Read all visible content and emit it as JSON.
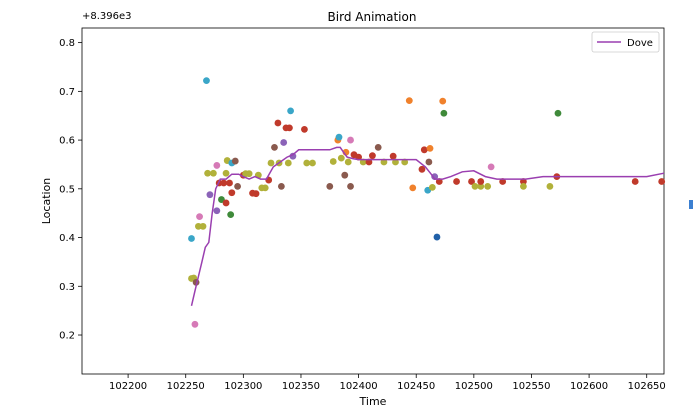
{
  "window": {
    "title": "Bird Animation"
  },
  "colors": {
    "dove": "#9a3fb0",
    "blue": "#3aa6c8",
    "orange": "#f0812c",
    "green": "#3f8a3a",
    "red": "#c03a2b",
    "purple": "#8b63b8",
    "brown": "#8a5a4e",
    "pink": "#d67ab7",
    "gray": "#7f7f7f",
    "olive": "#b1b13a",
    "cyan": "#18bfd0",
    "navy": "#2060a8"
  },
  "chart_data": {
    "type": "line",
    "title": "Bird Animation",
    "xlabel": "Time",
    "ylabel": "Location",
    "offset_text": "+8.396e3",
    "xlim": [
      102160,
      102665
    ],
    "ylim": [
      0.12,
      0.83
    ],
    "xticks": [
      102200,
      102250,
      102300,
      102350,
      102400,
      102450,
      102500,
      102550,
      102600,
      102650
    ],
    "yticks": [
      0.2,
      0.3,
      0.4,
      0.5,
      0.6,
      0.7,
      0.8
    ],
    "xtick_labels": [
      "102200",
      "102250",
      "102300",
      "102350",
      "102400",
      "102450",
      "102500",
      "102550",
      "102600",
      "102650"
    ],
    "ytick_labels": [
      "0.2",
      "0.3",
      "0.4",
      "0.5",
      "0.6",
      "0.7",
      "0.8"
    ],
    "legend": {
      "position": "top-right",
      "entries": [
        {
          "name": "Dove",
          "color": "#9a3fb0"
        }
      ]
    },
    "series": [
      {
        "name": "Dove",
        "color": "#9a3fb0",
        "x": [
          102255,
          102258,
          102261,
          102264,
          102267,
          102270,
          102273,
          102276,
          102280,
          102285,
          102290,
          102296,
          102300,
          102305,
          102310,
          102315,
          102320,
          102326,
          102332,
          102338,
          102343,
          102348,
          102355,
          102365,
          102375,
          102381,
          102384,
          102387,
          102390,
          102395,
          102400,
          102410,
          102420,
          102430,
          102440,
          102450,
          102458,
          102463,
          102466,
          102469,
          102473,
          102480,
          102490,
          102500,
          102510,
          102520,
          102530,
          102545,
          102560,
          102575,
          102590,
          102610,
          102630,
          102650,
          102665
        ],
        "y": [
          0.26,
          0.29,
          0.32,
          0.35,
          0.38,
          0.39,
          0.45,
          0.5,
          0.52,
          0.52,
          0.53,
          0.53,
          0.525,
          0.52,
          0.525,
          0.52,
          0.52,
          0.545,
          0.555,
          0.565,
          0.57,
          0.58,
          0.58,
          0.58,
          0.58,
          0.585,
          0.585,
          0.575,
          0.565,
          0.562,
          0.56,
          0.56,
          0.56,
          0.56,
          0.56,
          0.56,
          0.545,
          0.53,
          0.52,
          0.52,
          0.52,
          0.525,
          0.535,
          0.537,
          0.525,
          0.52,
          0.52,
          0.52,
          0.525,
          0.525,
          0.525,
          0.525,
          0.525,
          0.525,
          0.532
        ]
      }
    ],
    "points": [
      {
        "x": 102255,
        "y": 0.398,
        "c": "blue"
      },
      {
        "x": 102258,
        "y": 0.222,
        "c": "pink"
      },
      {
        "x": 102255,
        "y": 0.316,
        "c": "olive"
      },
      {
        "x": 102257,
        "y": 0.317,
        "c": "olive"
      },
      {
        "x": 102259,
        "y": 0.308,
        "c": "brown"
      },
      {
        "x": 102262,
        "y": 0.443,
        "c": "pink"
      },
      {
        "x": 102261,
        "y": 0.423,
        "c": "olive"
      },
      {
        "x": 102265,
        "y": 0.423,
        "c": "olive"
      },
      {
        "x": 102268,
        "y": 0.722,
        "c": "blue"
      },
      {
        "x": 102269,
        "y": 0.532,
        "c": "olive"
      },
      {
        "x": 102274,
        "y": 0.532,
        "c": "olive"
      },
      {
        "x": 102277,
        "y": 0.548,
        "c": "pink"
      },
      {
        "x": 102271,
        "y": 0.488,
        "c": "purple"
      },
      {
        "x": 102277,
        "y": 0.455,
        "c": "purple"
      },
      {
        "x": 102279,
        "y": 0.512,
        "c": "red"
      },
      {
        "x": 102283,
        "y": 0.512,
        "c": "red"
      },
      {
        "x": 102281,
        "y": 0.478,
        "c": "green"
      },
      {
        "x": 102285,
        "y": 0.471,
        "c": "red"
      },
      {
        "x": 102286,
        "y": 0.558,
        "c": "olive"
      },
      {
        "x": 102288,
        "y": 0.512,
        "c": "red"
      },
      {
        "x": 102289,
        "y": 0.447,
        "c": "green"
      },
      {
        "x": 102290,
        "y": 0.553,
        "c": "blue"
      },
      {
        "x": 102293,
        "y": 0.557,
        "c": "brown"
      },
      {
        "x": 102295,
        "y": 0.505,
        "c": "brown"
      },
      {
        "x": 102285,
        "y": 0.532,
        "c": "olive"
      },
      {
        "x": 102290,
        "y": 0.492,
        "c": "red"
      },
      {
        "x": 102300,
        "y": 0.528,
        "c": "red"
      },
      {
        "x": 102302,
        "y": 0.531,
        "c": "olive"
      },
      {
        "x": 102305,
        "y": 0.531,
        "c": "olive"
      },
      {
        "x": 102308,
        "y": 0.491,
        "c": "red"
      },
      {
        "x": 102311,
        "y": 0.49,
        "c": "red"
      },
      {
        "x": 102313,
        "y": 0.528,
        "c": "olive"
      },
      {
        "x": 102316,
        "y": 0.502,
        "c": "olive"
      },
      {
        "x": 102319,
        "y": 0.502,
        "c": "olive"
      },
      {
        "x": 102322,
        "y": 0.518,
        "c": "red"
      },
      {
        "x": 102324,
        "y": 0.553,
        "c": "olive"
      },
      {
        "x": 102327,
        "y": 0.585,
        "c": "brown"
      },
      {
        "x": 102330,
        "y": 0.635,
        "c": "red"
      },
      {
        "x": 102331,
        "y": 0.553,
        "c": "olive"
      },
      {
        "x": 102333,
        "y": 0.505,
        "c": "brown"
      },
      {
        "x": 102335,
        "y": 0.595,
        "c": "purple"
      },
      {
        "x": 102337,
        "y": 0.625,
        "c": "red"
      },
      {
        "x": 102340,
        "y": 0.625,
        "c": "red"
      },
      {
        "x": 102341,
        "y": 0.66,
        "c": "blue"
      },
      {
        "x": 102339,
        "y": 0.553,
        "c": "olive"
      },
      {
        "x": 102343,
        "y": 0.567,
        "c": "purple"
      },
      {
        "x": 102353,
        "y": 0.622,
        "c": "red"
      },
      {
        "x": 102355,
        "y": 0.553,
        "c": "olive"
      },
      {
        "x": 102360,
        "y": 0.553,
        "c": "olive"
      },
      {
        "x": 102375,
        "y": 0.505,
        "c": "brown"
      },
      {
        "x": 102378,
        "y": 0.556,
        "c": "olive"
      },
      {
        "x": 102382,
        "y": 0.6,
        "c": "orange"
      },
      {
        "x": 102383,
        "y": 0.606,
        "c": "blue"
      },
      {
        "x": 102385,
        "y": 0.563,
        "c": "olive"
      },
      {
        "x": 102388,
        "y": 0.528,
        "c": "brown"
      },
      {
        "x": 102389,
        "y": 0.575,
        "c": "orange"
      },
      {
        "x": 102391,
        "y": 0.555,
        "c": "olive"
      },
      {
        "x": 102393,
        "y": 0.505,
        "c": "brown"
      },
      {
        "x": 102393,
        "y": 0.6,
        "c": "pink"
      },
      {
        "x": 102396,
        "y": 0.57,
        "c": "red"
      },
      {
        "x": 102400,
        "y": 0.565,
        "c": "red"
      },
      {
        "x": 102404,
        "y": 0.555,
        "c": "olive"
      },
      {
        "x": 102409,
        "y": 0.555,
        "c": "red"
      },
      {
        "x": 102412,
        "y": 0.568,
        "c": "red"
      },
      {
        "x": 102417,
        "y": 0.585,
        "c": "brown"
      },
      {
        "x": 102422,
        "y": 0.555,
        "c": "olive"
      },
      {
        "x": 102430,
        "y": 0.567,
        "c": "red"
      },
      {
        "x": 102432,
        "y": 0.555,
        "c": "olive"
      },
      {
        "x": 102440,
        "y": 0.555,
        "c": "olive"
      },
      {
        "x": 102444,
        "y": 0.681,
        "c": "orange"
      },
      {
        "x": 102447,
        "y": 0.502,
        "c": "orange"
      },
      {
        "x": 102455,
        "y": 0.54,
        "c": "red"
      },
      {
        "x": 102457,
        "y": 0.58,
        "c": "red"
      },
      {
        "x": 102460,
        "y": 0.497,
        "c": "blue"
      },
      {
        "x": 102461,
        "y": 0.555,
        "c": "brown"
      },
      {
        "x": 102462,
        "y": 0.583,
        "c": "orange"
      },
      {
        "x": 102464,
        "y": 0.503,
        "c": "olive"
      },
      {
        "x": 102466,
        "y": 0.525,
        "c": "purple"
      },
      {
        "x": 102468,
        "y": 0.401,
        "c": "navy"
      },
      {
        "x": 102470,
        "y": 0.515,
        "c": "red"
      },
      {
        "x": 102473,
        "y": 0.68,
        "c": "orange"
      },
      {
        "x": 102474,
        "y": 0.655,
        "c": "green"
      },
      {
        "x": 102485,
        "y": 0.515,
        "c": "red"
      },
      {
        "x": 102498,
        "y": 0.515,
        "c": "red"
      },
      {
        "x": 102501,
        "y": 0.505,
        "c": "olive"
      },
      {
        "x": 102506,
        "y": 0.505,
        "c": "olive"
      },
      {
        "x": 102512,
        "y": 0.505,
        "c": "olive"
      },
      {
        "x": 102515,
        "y": 0.545,
        "c": "pink"
      },
      {
        "x": 102525,
        "y": 0.515,
        "c": "red"
      },
      {
        "x": 102543,
        "y": 0.515,
        "c": "red"
      },
      {
        "x": 102543,
        "y": 0.505,
        "c": "olive"
      },
      {
        "x": 102566,
        "y": 0.505,
        "c": "olive"
      },
      {
        "x": 102572,
        "y": 0.525,
        "c": "red"
      },
      {
        "x": 102573,
        "y": 0.655,
        "c": "green"
      },
      {
        "x": 102640,
        "y": 0.515,
        "c": "red"
      },
      {
        "x": 102663,
        "y": 0.515,
        "c": "red"
      },
      {
        "x": 102506,
        "y": 0.515,
        "c": "red"
      }
    ]
  }
}
